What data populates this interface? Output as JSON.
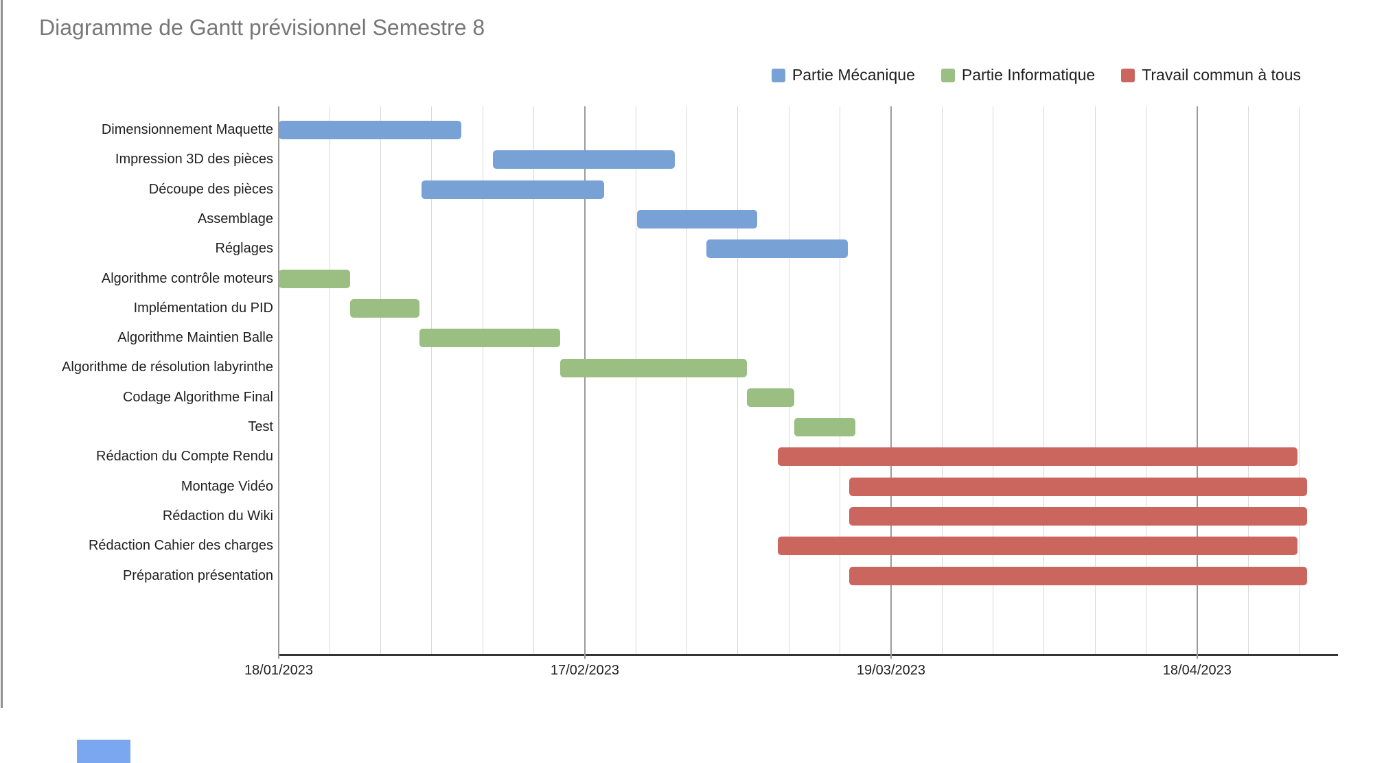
{
  "title": {
    "text": "Diagramme de Gantt prévisionnel Semestre 8"
  },
  "colors": {
    "title": "#777777",
    "text": "#1F1F1F",
    "grid_minor": "#D8D8D8",
    "grid_major": "#9B9B9B",
    "axis": "#333333",
    "frame_border": "#8F8F8F",
    "cell_fragment": "#7BA7F0"
  },
  "chart_data": {
    "type": "bar",
    "subtype": "gantt-timeline",
    "title": "Diagramme de Gantt prévisionnel Semestre 8",
    "grid": true,
    "legend_position": "top-right",
    "x_axis": {
      "unit": "days since first tick (18/01/2023)",
      "range_days": [
        0,
        103.8
      ],
      "minor_tick_every_days": 5,
      "major_ticks": [
        {
          "day": 0,
          "label": "18/01/2023"
        },
        {
          "day": 30,
          "label": "17/02/2023"
        },
        {
          "day": 60,
          "label": "19/03/2023"
        },
        {
          "day": 90,
          "label": "18/04/2023"
        }
      ]
    },
    "series": [
      {
        "name": "Partie Mécanique",
        "color": "#78A1D6"
      },
      {
        "name": "Partie Informatique",
        "color": "#9BBE83"
      },
      {
        "name": "Travail commun à tous",
        "color": "#CB665F"
      }
    ],
    "tasks": [
      {
        "label": "Dimensionnement Maquette",
        "series": "Partie Mécanique",
        "start_day": 0,
        "end_day": 17.9
      },
      {
        "label": "Impression 3D des pièces",
        "series": "Partie Mécanique",
        "start_day": 21,
        "end_day": 38.8
      },
      {
        "label": "Découpe des pièces",
        "series": "Partie Mécanique",
        "start_day": 14,
        "end_day": 31.9
      },
      {
        "label": "Assemblage",
        "series": "Partie Mécanique",
        "start_day": 35.1,
        "end_day": 46.9
      },
      {
        "label": "Réglages",
        "series": "Partie Mécanique",
        "start_day": 41.9,
        "end_day": 55.8
      },
      {
        "label": "Algorithme contrôle moteurs",
        "series": "Partie Informatique",
        "start_day": 0,
        "end_day": 7
      },
      {
        "label": "Implémentation du PID",
        "series": "Partie Informatique",
        "start_day": 7,
        "end_day": 13.8
      },
      {
        "label": "Algorithme Maintien Balle",
        "series": "Partie Informatique",
        "start_day": 13.8,
        "end_day": 27.6
      },
      {
        "label": "Algorithme de résolution labyrinthe",
        "series": "Partie Informatique",
        "start_day": 27.6,
        "end_day": 45.9
      },
      {
        "label": "Codage Algorithme Final",
        "series": "Partie Informatique",
        "start_day": 45.9,
        "end_day": 50.5
      },
      {
        "label": "Test",
        "series": "Partie Informatique",
        "start_day": 50.5,
        "end_day": 56.5
      },
      {
        "label": "Rédaction du Compte Rendu",
        "series": "Travail commun à tous",
        "start_day": 48.9,
        "end_day": 99.8
      },
      {
        "label": "Montage Vidéo",
        "series": "Travail commun à tous",
        "start_day": 55.9,
        "end_day": 100.8
      },
      {
        "label": "Rédaction du Wiki",
        "series": "Travail commun à tous",
        "start_day": 55.9,
        "end_day": 100.8
      },
      {
        "label": "Rédaction Cahier des charges",
        "series": "Travail commun à tous",
        "start_day": 48.9,
        "end_day": 99.8
      },
      {
        "label": "Préparation présentation",
        "series": "Travail commun à tous",
        "start_day": 55.9,
        "end_day": 100.8
      }
    ]
  }
}
